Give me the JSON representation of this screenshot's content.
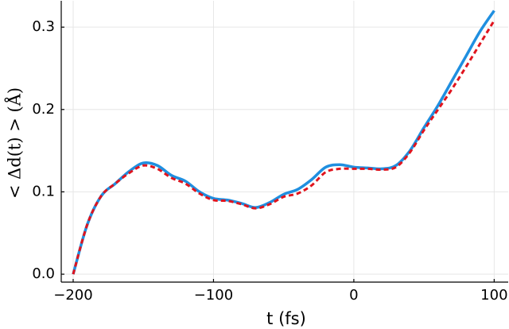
{
  "chart_data": {
    "type": "line",
    "x_label": "t (fs)",
    "y_label": "< Δd(t) > (Å)",
    "x": [
      -200,
      -190,
      -180,
      -170,
      -160,
      -150,
      -140,
      -130,
      -120,
      -110,
      -100,
      -90,
      -80,
      -70,
      -60,
      -50,
      -40,
      -30,
      -20,
      -10,
      0,
      10,
      20,
      30,
      40,
      50,
      60,
      70,
      80,
      90,
      100
    ],
    "series": [
      {
        "color": "#1f8fe0",
        "dash": false,
        "values": [
          0.0,
          0.06,
          0.095,
          0.11,
          0.125,
          0.135,
          0.132,
          0.12,
          0.113,
          0.1,
          0.092,
          0.09,
          0.086,
          0.081,
          0.087,
          0.097,
          0.103,
          0.115,
          0.13,
          0.133,
          0.13,
          0.129,
          0.128,
          0.132,
          0.15,
          0.178,
          0.205,
          0.235,
          0.265,
          0.295,
          0.32
        ]
      },
      {
        "color": "#e0141e",
        "dash": true,
        "values": [
          0.0,
          0.06,
          0.095,
          0.11,
          0.123,
          0.132,
          0.128,
          0.117,
          0.11,
          0.098,
          0.09,
          0.089,
          0.085,
          0.08,
          0.085,
          0.094,
          0.098,
          0.108,
          0.124,
          0.128,
          0.128,
          0.128,
          0.127,
          0.13,
          0.148,
          0.175,
          0.2,
          0.225,
          0.252,
          0.28,
          0.308
        ]
      }
    ],
    "xlim": [
      -208.5,
      110
    ],
    "ylim": [
      -0.0096,
      0.332
    ],
    "xticks": [
      {
        "value": -200,
        "label": "−200"
      },
      {
        "value": -100,
        "label": "−100"
      },
      0,
      100
    ],
    "yticks": [
      {
        "value": 0,
        "label": "0.0"
      },
      0.1,
      0.2,
      0.3
    ],
    "grid": true
  }
}
